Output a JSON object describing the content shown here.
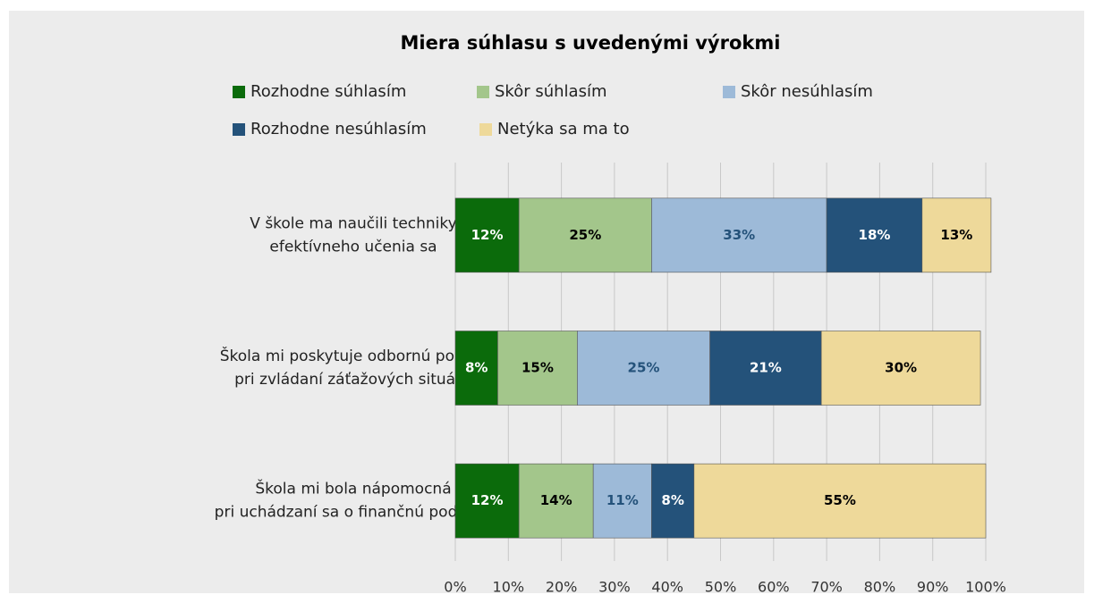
{
  "chart_data": {
    "type": "stacked_barh",
    "title": "Miera súhlasu s uvedenými výrokmi",
    "categories": [
      [
        "V škole ma naučili techniky",
        "efektívneho učenia sa"
      ],
      [
        "Škola mi poskytuje odbornú pomoc",
        "pri zvládaní záťažových situácií"
      ],
      [
        "Škola mi bola nápomocná",
        "pri uchádzaní sa o finančnú podporu"
      ]
    ],
    "series": [
      {
        "name": "Rozhodne súhlasím",
        "color": "#0b6b0b",
        "values": [
          12,
          8,
          12
        ],
        "value_labels": [
          "12%",
          "8%",
          "12%"
        ]
      },
      {
        "name": "Skôr súhlasím",
        "color": "#a3c68b",
        "values": [
          25,
          15,
          14
        ],
        "value_labels": [
          "25%",
          "15%",
          "14%"
        ]
      },
      {
        "name": "Skôr nesúhlasím",
        "color": "#9dbad8",
        "values": [
          33,
          25,
          11
        ],
        "value_labels": [
          "33%",
          "25%",
          "11%"
        ]
      },
      {
        "name": "Rozhodne nesúhlasím",
        "color": "#24527a",
        "values": [
          18,
          21,
          8
        ],
        "value_labels": [
          "18%",
          "21%",
          "8%"
        ]
      },
      {
        "name": "Netýka sa ma to",
        "color": "#eed99a",
        "values": [
          13,
          30,
          55
        ],
        "value_labels": [
          "13%",
          "30%",
          "55%"
        ]
      }
    ],
    "xlim": [
      0,
      100
    ],
    "xticks": [
      {
        "value": 0,
        "label": "0%"
      },
      {
        "value": 10,
        "label": "10%"
      },
      {
        "value": 20,
        "label": "20%"
      },
      {
        "value": 30,
        "label": "30%"
      },
      {
        "value": 40,
        "label": "40%"
      },
      {
        "value": 50,
        "label": "50%"
      },
      {
        "value": 60,
        "label": "60%"
      },
      {
        "value": 70,
        "label": "70%"
      },
      {
        "value": 80,
        "label": "80%"
      },
      {
        "value": 90,
        "label": "90%"
      },
      {
        "value": 100,
        "label": "100%"
      }
    ],
    "grid": true
  }
}
